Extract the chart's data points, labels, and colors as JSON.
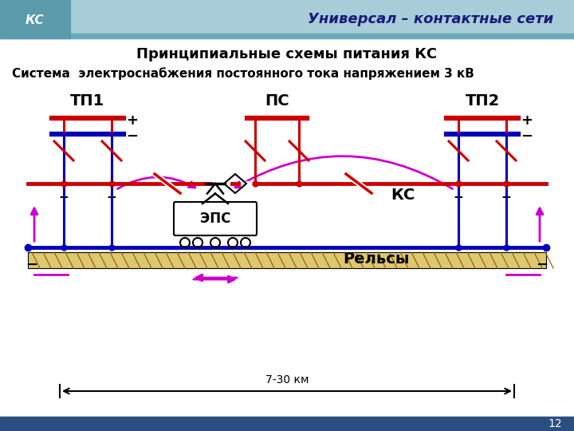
{
  "title_header": "Универсал – контактные сети",
  "subtitle": "Принципиальные схемы питания КС",
  "system_title": "Система  электроснабжения постоянного тока напряжением 3 кВ",
  "label_tp1": "ТП1",
  "label_tp2": "ТП2",
  "label_ps": "ПС",
  "label_ks": "КС",
  "label_eps": "ЭПС",
  "label_rails": "Рельсы",
  "label_distance": "7-30 км",
  "page_num": "12",
  "header_bg": "#a8cdd8",
  "header_dark": "#6aabb8",
  "logo_bg": "#5a9aaa",
  "bg_color": "#ffffff",
  "red_color": "#cc0000",
  "blue_color": "#0000bb",
  "magenta_color": "#cc00cc",
  "black_color": "#000000",
  "ground_fill": "#ddc870",
  "ground_line": "#996600",
  "footer_bg": "#2a4f7f",
  "header_title_color": "#1a1a7a"
}
